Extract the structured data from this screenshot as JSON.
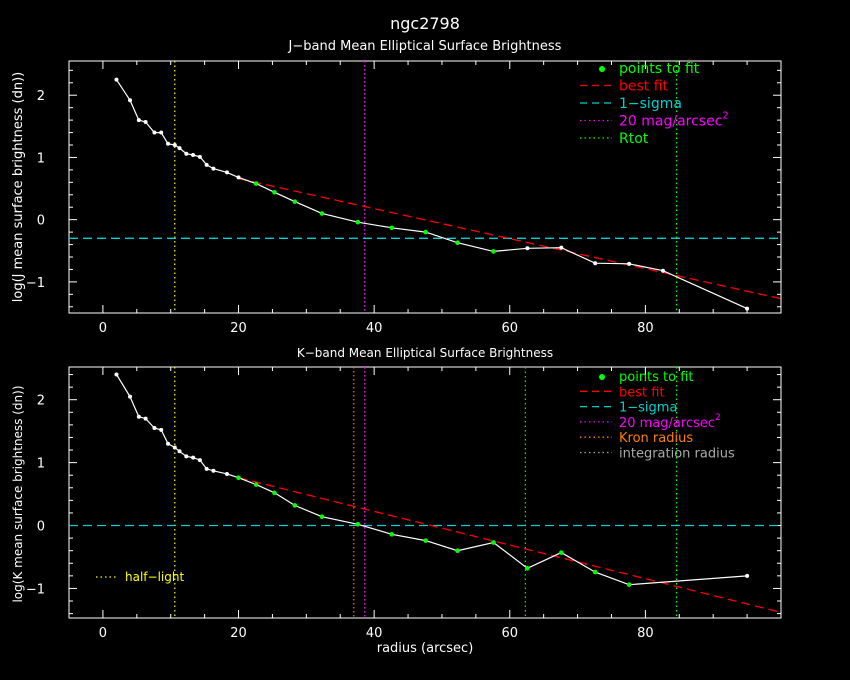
{
  "figure_title": "ngc2798",
  "xlabel": "radius (arcsec)",
  "colors": {
    "background": "#000000",
    "axes": "#ffffff",
    "data": "#ffffff",
    "fit_points": "#00ff00",
    "best_fit": "#ff0000",
    "one_sigma": "#00d0d0",
    "mag20": "#ff00ff",
    "rtot": "#00ff00",
    "kron": "#ff8000",
    "integration": "#aaaaaa",
    "half_light": "#ffff00"
  },
  "chart_data": [
    {
      "type": "line",
      "title": "J−band Mean Elliptical Surface Brightness",
      "ylabel": "log(J mean surface brightness (dn))",
      "xlim": [
        -5,
        100
      ],
      "ylim": [
        -1.5,
        2.55
      ],
      "xticks": [
        0,
        20,
        40,
        60,
        80
      ],
      "xtick_labels": [
        "0",
        "20",
        "40",
        "60",
        "80"
      ],
      "yticks": [
        2,
        1,
        0,
        -1
      ],
      "ytick_labels": [
        "2",
        "1",
        "0",
        "−1"
      ],
      "legend": [
        {
          "key": "fit",
          "label": "points to fit",
          "color": "#00ff00"
        },
        {
          "key": "best",
          "label": "best fit",
          "color": "#ff0000"
        },
        {
          "key": "sigma",
          "label": "1−sigma",
          "color": "#00d0d0"
        },
        {
          "key": "mag",
          "label": "20 mag/arcsec",
          "sup": "2",
          "color": "#ff00ff"
        },
        {
          "key": "rtot",
          "label": "Rtot",
          "color": "#00ff00"
        }
      ],
      "series": [
        {
          "name": "profile",
          "x": [
            2,
            4,
            5.3,
            6.3,
            7.6,
            8.6,
            9.6,
            10.6,
            11.3,
            12.3,
            13.3,
            14.3,
            15.3,
            16.3,
            18.3,
            20,
            22.6,
            25.3,
            28.3,
            32.3,
            37.6,
            42.6,
            47.6,
            52.3,
            57.6,
            62.6,
            67.6,
            72.6,
            77.6,
            82.6,
            95
          ],
          "y": [
            2.25,
            1.92,
            1.6,
            1.57,
            1.4,
            1.4,
            1.22,
            1.2,
            1.15,
            1.06,
            1.04,
            1.01,
            0.88,
            0.82,
            0.76,
            0.68,
            0.58,
            0.44,
            0.29,
            0.1,
            -0.04,
            -0.13,
            -0.2,
            -0.37,
            -0.51,
            -0.46,
            -0.45,
            -0.7,
            -0.71,
            -0.82,
            -1.43
          ]
        }
      ],
      "fit_points": {
        "x": [
          22.6,
          25.3,
          28.3,
          32.3,
          37.6,
          42.6,
          47.6,
          52.3,
          57.6
        ],
        "y": [
          0.58,
          0.44,
          0.29,
          0.1,
          -0.04,
          -0.13,
          -0.2,
          -0.37,
          -0.51
        ]
      },
      "best_fit": {
        "x": [
          20,
          100
        ],
        "y": [
          0.66,
          -1.27
        ]
      },
      "one_sigma": -0.3,
      "vlines": [
        {
          "key": "half",
          "x": 10.6,
          "color": "#ffff00"
        },
        {
          "key": "mag",
          "x": 38.6,
          "color": "#ff00ff"
        },
        {
          "key": "rtot",
          "x": 84.6,
          "color": "#00ff00"
        }
      ]
    },
    {
      "type": "line",
      "title": "K−band Mean Elliptical Surface Brightness",
      "ylabel": "log(K mean surface brightness (dn))",
      "xlim": [
        -5,
        100
      ],
      "ylim": [
        -1.47,
        2.52
      ],
      "xticks": [
        0,
        20,
        40,
        60,
        80
      ],
      "xtick_labels": [
        "0",
        "20",
        "40",
        "60",
        "80"
      ],
      "yticks": [
        2,
        1,
        0,
        -1
      ],
      "ytick_labels": [
        "2",
        "1",
        "0",
        "−1"
      ],
      "legend": [
        {
          "key": "fit",
          "label": "points to fit",
          "color": "#00ff00"
        },
        {
          "key": "best",
          "label": "best fit",
          "color": "#ff0000"
        },
        {
          "key": "sigma",
          "label": "1−sigma",
          "color": "#00d0d0"
        },
        {
          "key": "mag",
          "label": "20 mag/arcsec",
          "sup": "2",
          "color": "#ff00ff"
        },
        {
          "key": "kron",
          "label": "Kron radius",
          "color": "#ff8000"
        },
        {
          "key": "integ",
          "label": "integration radius",
          "color": "#aaaaaa"
        }
      ],
      "half_light_label": "half−light",
      "series": [
        {
          "name": "profile",
          "x": [
            2,
            4,
            5.3,
            6.3,
            7.6,
            8.6,
            9.6,
            10.6,
            11.3,
            12.3,
            13.3,
            14.3,
            15.3,
            16.3,
            18.3,
            20,
            22.6,
            25.3,
            28.3,
            32.3,
            37.6,
            42.6,
            47.6,
            52.3,
            57.6,
            62.6,
            67.6,
            72.6,
            77.6,
            95
          ],
          "y": [
            2.4,
            2.05,
            1.73,
            1.7,
            1.55,
            1.52,
            1.3,
            1.24,
            1.18,
            1.1,
            1.08,
            1.04,
            0.9,
            0.87,
            0.82,
            0.76,
            0.65,
            0.52,
            0.32,
            0.14,
            0.02,
            -0.14,
            -0.24,
            -0.4,
            -0.27,
            -0.68,
            -0.43,
            -0.74,
            -0.94,
            -0.8
          ]
        }
      ],
      "fit_points": {
        "x": [
          20,
          22.6,
          25.3,
          28.3,
          32.3,
          37.6,
          42.6,
          47.6,
          52.3,
          57.6,
          62.6,
          67.6,
          72.6,
          77.6
        ],
        "y": [
          0.76,
          0.65,
          0.52,
          0.32,
          0.14,
          0.02,
          -0.14,
          -0.24,
          -0.4,
          -0.27,
          -0.68,
          -0.43,
          -0.74,
          -0.94
        ]
      },
      "best_fit": {
        "x": [
          20,
          100
        ],
        "y": [
          0.76,
          -1.38
        ]
      },
      "one_sigma": 0.0,
      "vlines": [
        {
          "key": "half",
          "x": 10.6,
          "color": "#ffff00"
        },
        {
          "key": "kron",
          "x": 37,
          "color": "#ff8000"
        },
        {
          "key": "mag",
          "x": 38.6,
          "color": "#ff00ff"
        },
        {
          "key": "integ",
          "x": 62.3,
          "color": "#00ff00"
        },
        {
          "key": "rtot",
          "x": 84.6,
          "color": "#00ff00"
        }
      ]
    }
  ]
}
